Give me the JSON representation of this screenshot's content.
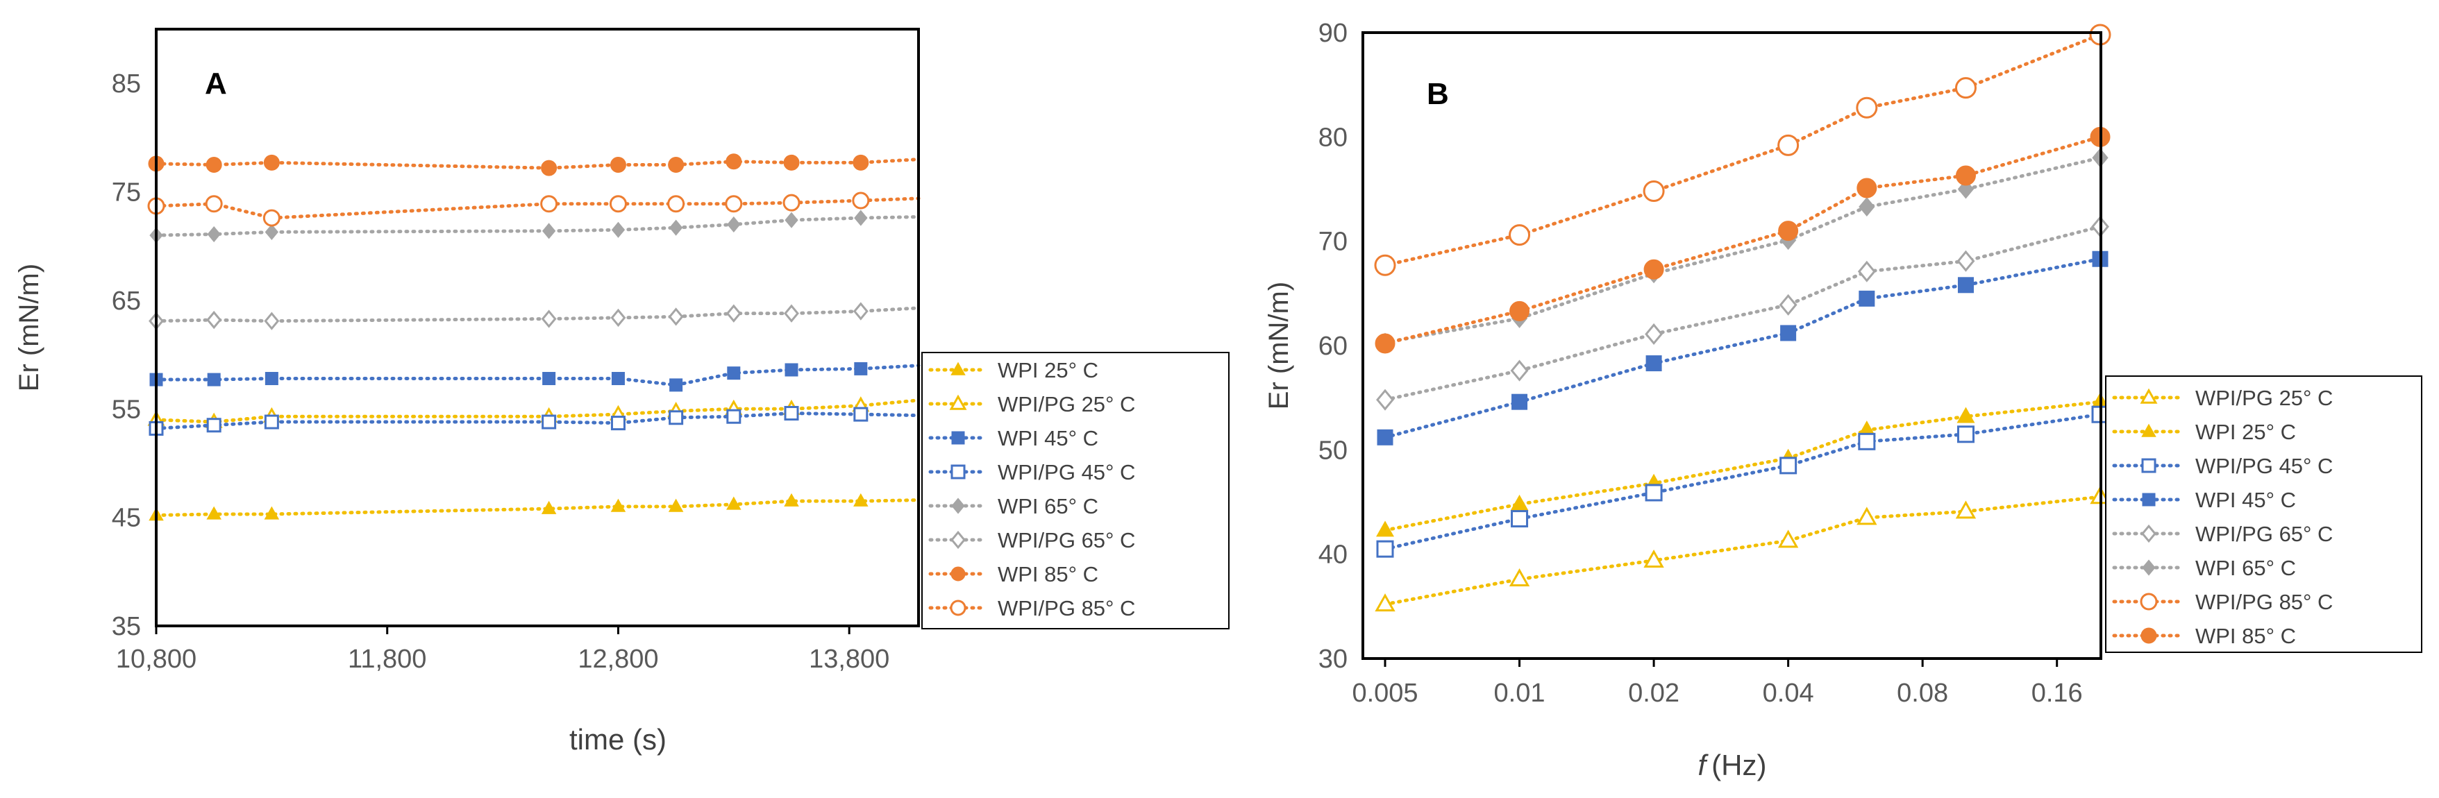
{
  "chart_data": [
    {
      "panel_label": "A",
      "type": "line",
      "title": "",
      "xlabel": "time (s)",
      "ylabel": "Er (mN/m)",
      "xlim": [
        10800,
        14100
      ],
      "ylim": [
        35,
        90
      ],
      "x_ticks": [
        10800,
        11800,
        12800,
        13800
      ],
      "x_tick_labels": [
        "10,800",
        "11,800",
        "12,800",
        "13,800"
      ],
      "y_ticks": [
        35,
        45,
        55,
        65,
        75,
        85
      ],
      "y_tick_labels": [
        "35",
        "45",
        "55",
        "65",
        "75",
        "85"
      ],
      "legend_position": "right",
      "series": [
        {
          "name": "WPI 25° C",
          "color": "#F2BE00",
          "marker": "triangle",
          "filled": true,
          "x": [
            10800,
            11050,
            11300,
            12500,
            12800,
            13050,
            13300,
            13550,
            13850,
            14100
          ],
          "y": [
            45.2,
            45.3,
            45.3,
            45.8,
            46.0,
            46.0,
            46.2,
            46.5,
            46.5,
            46.6
          ]
        },
        {
          "name": "WPI/PG 25° C",
          "color": "#F2BE00",
          "marker": "triangle",
          "filled": false,
          "x": [
            10800,
            11050,
            11300,
            12500,
            12800,
            13050,
            13300,
            13550,
            13850,
            14100
          ],
          "y": [
            54.0,
            53.8,
            54.3,
            54.3,
            54.5,
            54.8,
            55.0,
            55.0,
            55.3,
            55.8
          ]
        },
        {
          "name": "WPI 45° C",
          "color": "#4472C4",
          "marker": "square",
          "filled": true,
          "x": [
            10800,
            11050,
            11300,
            12500,
            12800,
            13050,
            13300,
            13550,
            13850,
            14100
          ],
          "y": [
            57.7,
            57.7,
            57.8,
            57.8,
            57.8,
            57.2,
            58.3,
            58.6,
            58.7,
            59.0
          ]
        },
        {
          "name": "WPI/PG 45° C",
          "color": "#4472C4",
          "marker": "square",
          "filled": false,
          "x": [
            10800,
            11050,
            11300,
            12500,
            12800,
            13050,
            13300,
            13550,
            13850,
            14100
          ],
          "y": [
            53.2,
            53.5,
            53.8,
            53.8,
            53.7,
            54.2,
            54.3,
            54.6,
            54.5,
            54.4
          ]
        },
        {
          "name": "WPI 65° C",
          "color": "#A5A5A5",
          "marker": "diamond",
          "filled": true,
          "x": [
            10800,
            11050,
            11300,
            12500,
            12800,
            13050,
            13300,
            13550,
            13850,
            14100
          ],
          "y": [
            71.0,
            71.1,
            71.3,
            71.4,
            71.5,
            71.7,
            72.0,
            72.4,
            72.6,
            72.7
          ]
        },
        {
          "name": "WPI/PG 65° C",
          "color": "#A5A5A5",
          "marker": "diamond",
          "filled": false,
          "x": [
            10800,
            11050,
            11300,
            12500,
            12800,
            13050,
            13300,
            13550,
            13850,
            14100
          ],
          "y": [
            63.1,
            63.2,
            63.1,
            63.3,
            63.4,
            63.5,
            63.8,
            63.8,
            64.0,
            64.3
          ]
        },
        {
          "name": "WPI 85° C",
          "color": "#ED7D31",
          "marker": "circle",
          "filled": true,
          "x": [
            10800,
            11050,
            11300,
            12500,
            12800,
            13050,
            13300,
            13550,
            13850,
            14100
          ],
          "y": [
            77.6,
            77.5,
            77.7,
            77.2,
            77.5,
            77.5,
            77.8,
            77.7,
            77.7,
            78.0
          ]
        },
        {
          "name": "WPI/PG 85° C",
          "color": "#ED7D31",
          "marker": "circle",
          "filled": false,
          "x": [
            10800,
            11050,
            11300,
            12500,
            12800,
            13050,
            13300,
            13550,
            13850,
            14100
          ],
          "y": [
            73.7,
            73.9,
            72.6,
            73.9,
            73.9,
            73.9,
            73.9,
            74.0,
            74.2,
            74.4
          ]
        }
      ]
    },
    {
      "panel_label": "B",
      "type": "line",
      "title": "",
      "xlabel_italic": "f",
      "xlabel": "(Hz)",
      "ylabel": "Er (mN/m)",
      "x_scale": "log",
      "categories": [
        "0.005",
        "0.01",
        "0.02",
        "0.04",
        "0.06",
        "0.1",
        "0.2"
      ],
      "x_tick_labels": [
        "0.005",
        "0.01",
        "0.02",
        "0.04",
        "0.08",
        "0.16"
      ],
      "ylim": [
        30,
        90
      ],
      "y_ticks": [
        30,
        40,
        50,
        60,
        70,
        80,
        90
      ],
      "y_tick_labels": [
        "30",
        "40",
        "50",
        "60",
        "70",
        "80",
        "90"
      ],
      "legend_position": "right",
      "series": [
        {
          "name": "WPI/PG 25° C",
          "color": "#F2BE00",
          "marker": "triangle",
          "filled": false,
          "values": [
            35.2,
            37.6,
            39.4,
            41.3,
            43.5,
            44.1,
            45.5
          ]
        },
        {
          "name": "WPI 25° C",
          "color": "#F2BE00",
          "marker": "triangle",
          "filled": true,
          "values": [
            42.3,
            44.8,
            46.8,
            49.2,
            51.9,
            53.2,
            54.6
          ]
        },
        {
          "name": "WPI/PG 45° C",
          "color": "#4472C4",
          "marker": "square",
          "filled": false,
          "values": [
            40.5,
            43.4,
            45.9,
            48.5,
            50.8,
            51.5,
            53.4
          ]
        },
        {
          "name": "WPI 45° C",
          "color": "#4472C4",
          "marker": "square",
          "filled": true,
          "values": [
            51.2,
            54.6,
            58.3,
            61.2,
            64.5,
            65.8,
            68.3
          ]
        },
        {
          "name": "WPI/PG 65° C",
          "color": "#A5A5A5",
          "marker": "diamond",
          "filled": false,
          "values": [
            54.8,
            57.6,
            61.1,
            63.9,
            67.1,
            68.1,
            71.4
          ]
        },
        {
          "name": "WPI 65° C",
          "color": "#A5A5A5",
          "marker": "diamond",
          "filled": true,
          "values": [
            60.3,
            62.6,
            66.9,
            70.1,
            73.3,
            75.0,
            78.0
          ]
        },
        {
          "name": "WPI/PG 85° C",
          "color": "#ED7D31",
          "marker": "circle",
          "filled": false,
          "values": [
            67.7,
            70.6,
            74.8,
            79.2,
            82.8,
            84.7,
            89.8
          ]
        },
        {
          "name": "WPI 85° C",
          "color": "#ED7D31",
          "marker": "circle",
          "filled": true,
          "values": [
            60.2,
            63.3,
            67.3,
            71.0,
            75.1,
            76.3,
            80.0
          ]
        }
      ]
    }
  ]
}
